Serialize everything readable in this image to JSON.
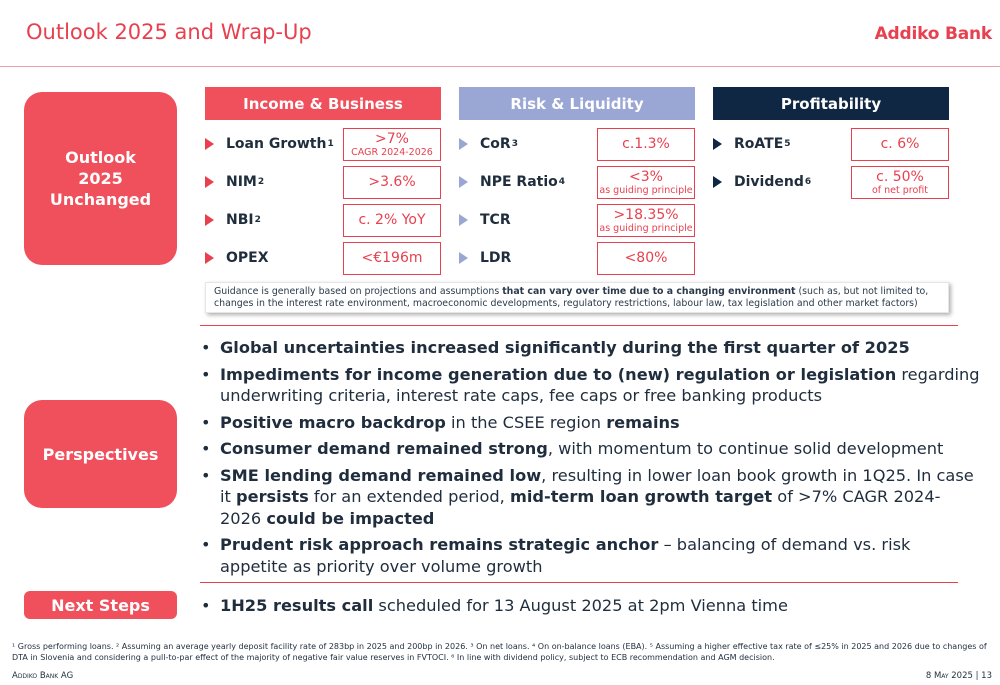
{
  "header": {
    "title": "Outlook 2025 and Wrap-Up",
    "logo": "Addiko Bank"
  },
  "sections": {
    "outlook": "Outlook 2025 Unchanged",
    "perspectives": "Perspectives",
    "next_steps": "Next Steps"
  },
  "columns": {
    "income": {
      "title": "Income & Business",
      "items": [
        {
          "label": "Loan Growth",
          "sup": "1",
          "value": ">7%",
          "sub": "CAGR 2024-2026"
        },
        {
          "label": "NIM",
          "sup": "2",
          "value": ">3.6%",
          "sub": ""
        },
        {
          "label": "NBI",
          "sup": "2",
          "value": "c. 2% YoY",
          "sub": ""
        },
        {
          "label": "OPEX",
          "sup": "",
          "value": "<€196m",
          "sub": ""
        }
      ]
    },
    "risk": {
      "title": "Risk & Liquidity",
      "items": [
        {
          "label": "CoR",
          "sup": "3",
          "value": "c.1.3%",
          "sub": ""
        },
        {
          "label": "NPE Ratio",
          "sup": "4",
          "value": "<3%",
          "sub": "as guiding principle"
        },
        {
          "label": "TCR",
          "sup": "",
          "value": ">18.35%",
          "sub": "as guiding principle"
        },
        {
          "label": "LDR",
          "sup": "",
          "value": "<80%",
          "sub": ""
        }
      ]
    },
    "profit": {
      "title": "Profitability",
      "items": [
        {
          "label": "RoATE",
          "sup": "5",
          "value": "c. 6%",
          "sub": ""
        },
        {
          "label": "Dividend",
          "sup": "6",
          "value": "c. 50%",
          "sub": "of net profit"
        }
      ]
    }
  },
  "guidance": {
    "pre": "Guidance is generally based on projections and assumptions ",
    "bold": "that can vary over time due to a changing environment",
    "post": " (such as, but not limited to, changes in the interest rate environment, macroeconomic developments, regulatory restrictions, labour law, tax legislation and other market factors)"
  },
  "perspectives": [
    {
      "b1": "Global uncertainties increased significantly during the first quarter of 2025",
      "t1": ""
    },
    {
      "b1": "Impediments for income generation due to (new) regulation or legislation",
      "t1": " regarding underwriting criteria, interest rate caps, fee caps or free banking products"
    },
    {
      "b1": "Positive macro backdrop",
      "t1": " in the CSEE region ",
      "b2": "remains"
    },
    {
      "b1": "Consumer demand remained strong",
      "t1": ", with momentum to continue solid development"
    },
    {
      "b1": "SME lending demand remained low",
      "t1": ", resulting in lower loan book growth in 1Q25. In case it ",
      "b2": "persists",
      "t2": " for an extended period, ",
      "b3": "mid-term loan growth target",
      "t3": " of >7% CAGR 2024-2026 ",
      "b4": "could be impacted"
    },
    {
      "b1": "Prudent risk approach remains strategic anchor",
      "t1": " – balancing of demand vs. risk appetite as priority over volume growth"
    }
  ],
  "next_steps": {
    "bold": "1H25 results call",
    "text": " scheduled for 13 August 2025 at 2pm Vienna time"
  },
  "footnote": "¹ Gross performing loans. ² Assuming an average yearly deposit facility rate of 283bp in 2025 and 200bp in 2026. ³ On net loans. ⁴ On on-balance loans (EBA). ⁵ Assuming a higher effective tax rate of ≤25% in 2025 and 2026 due to changes of DTA in Slovenia and considering a pull-to-par effect of the majority of negative fair value reserves in FVTOCI. ⁶ In line with dividend policy, subject to ECB recommendation and AGM decision.",
  "footer": {
    "left": "Addiko Bank AG",
    "right": "8 May 2025 | 13"
  }
}
